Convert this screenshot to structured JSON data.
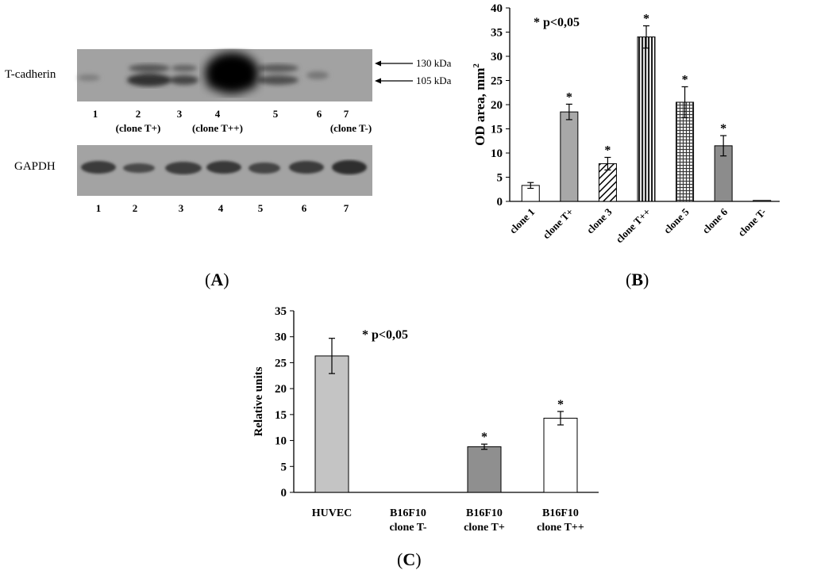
{
  "panel_a": {
    "letter": "A",
    "tcad_label": "T-cadherin",
    "gapdh_label": "GAPDH",
    "kda_upper": "130 kDa",
    "kda_lower": "105 kDa",
    "tcad_lanes": [
      {
        "num": "1",
        "sub": ""
      },
      {
        "num": "2",
        "sub": "(clone T+)"
      },
      {
        "num": "3",
        "sub": ""
      },
      {
        "num": "4",
        "sub": "(clone T++)"
      },
      {
        "num": "5",
        "sub": ""
      },
      {
        "num": "6",
        "sub": ""
      },
      {
        "num": "7",
        "sub": "(clone T-)"
      }
    ],
    "gapdh_lanes": [
      "1",
      "2",
      "3",
      "4",
      "5",
      "6",
      "7"
    ]
  },
  "chart_data": [
    {
      "panel": "B",
      "type": "bar",
      "title": "",
      "annotation": "* p<0,05",
      "xlabel": "",
      "ylabel": "OD area, mm",
      "ylabel_sup": "2",
      "ylim": [
        0,
        40
      ],
      "yticks": [
        0,
        5,
        10,
        15,
        20,
        25,
        30,
        35,
        40
      ],
      "categories": [
        "clone 1",
        "clone T+",
        "clone 3",
        "clone T++",
        "clone 5",
        "clone 6",
        "clone T-"
      ],
      "values": [
        3.3,
        18.5,
        7.8,
        34,
        20.5,
        11.5,
        0.2
      ],
      "errors": [
        0.6,
        1.6,
        1.3,
        2.3,
        3.2,
        2.1,
        0
      ],
      "significant": [
        false,
        true,
        true,
        true,
        true,
        true,
        false
      ],
      "significance_marker": "*",
      "fills": [
        "white",
        "#a8a8a8",
        "hatch-diag",
        "stripes-vert",
        "grid-check",
        "#8c8c8c",
        "#999999"
      ]
    },
    {
      "panel": "C",
      "type": "bar",
      "title": "",
      "annotation": "* p<0,05",
      "xlabel": "",
      "ylabel": "Relative units",
      "ylim": [
        0,
        35
      ],
      "yticks": [
        0,
        5,
        10,
        15,
        20,
        25,
        30,
        35
      ],
      "categories": [
        [
          "HUVEC"
        ],
        [
          "B16F10",
          "clone T-"
        ],
        [
          "B16F10",
          "clone T+"
        ],
        [
          "B16F10",
          "clone T++"
        ]
      ],
      "values": [
        26.3,
        0,
        8.8,
        14.3
      ],
      "errors": [
        3.4,
        0,
        0.5,
        1.3
      ],
      "significant": [
        false,
        false,
        true,
        true
      ],
      "significance_marker": "*",
      "fills": [
        "#c4c4c4",
        "#c4c4c4",
        "#8f8f8f",
        "#ffffff"
      ]
    }
  ],
  "panel_b_letter": "B",
  "panel_c_letter": "C"
}
